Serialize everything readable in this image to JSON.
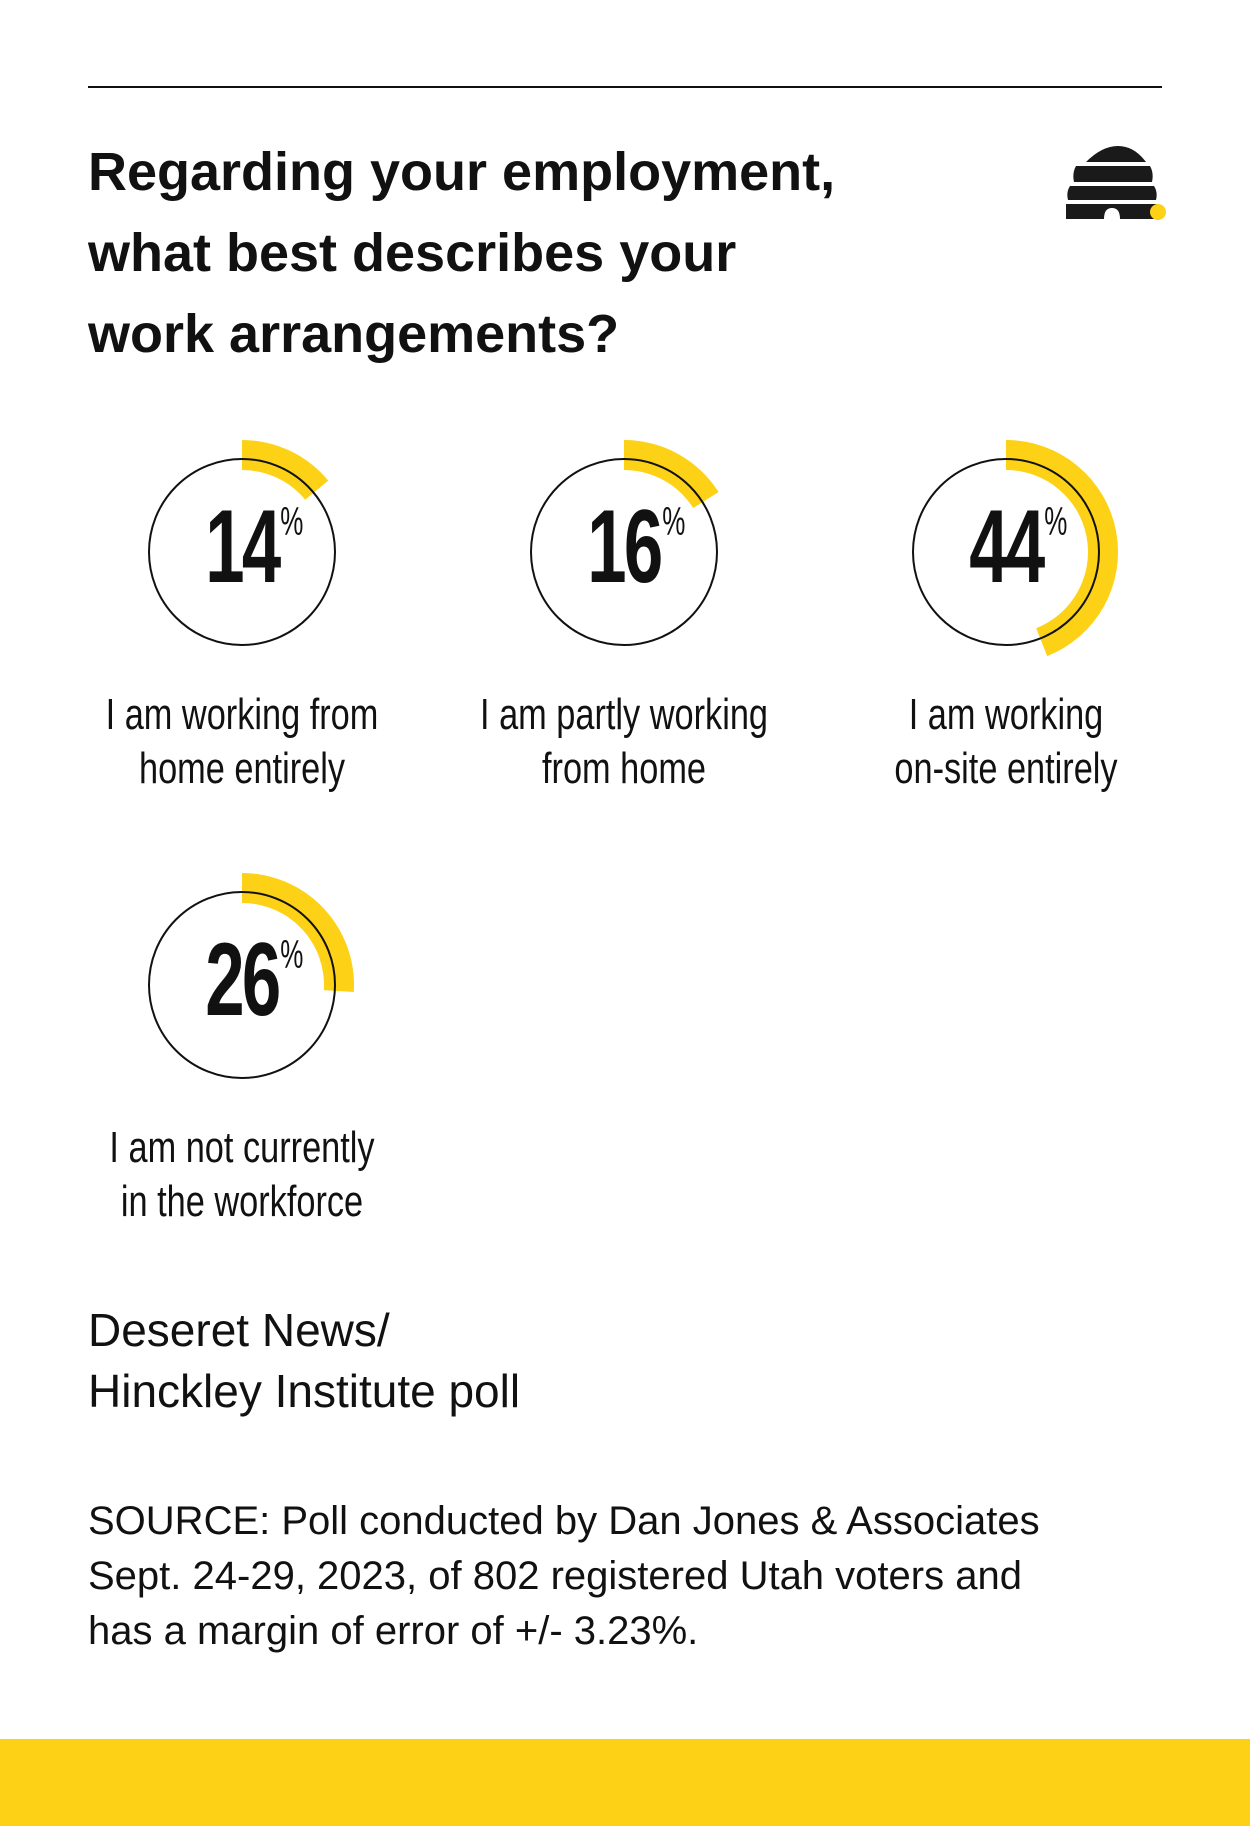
{
  "title": "Regarding your employment, what best describes your work arrangements?",
  "title_lines": [
    "Regarding your employment,",
    "what best describes your",
    "work arrangements?"
  ],
  "chart_data": {
    "type": "pie",
    "style": "donut-arc",
    "title": "Regarding your employment, what best describes your work arrangements?",
    "unit": "%",
    "categories": [
      "I am working from home entirely",
      "I am partly working from home",
      "I am working on-site entirely",
      "I am not currently in the workforce"
    ],
    "values": [
      14,
      16,
      44,
      26
    ],
    "items": [
      {
        "value": "14",
        "label_lines": [
          "I am working from",
          "home entirely"
        ]
      },
      {
        "value": "16",
        "label_lines": [
          "I am partly working",
          "from home"
        ]
      },
      {
        "value": "44",
        "label_lines": [
          "I am working",
          "on-site entirely"
        ]
      },
      {
        "value": "26",
        "label_lines": [
          "I am not currently",
          "in the workforce"
        ]
      }
    ],
    "percent_symbol": "%"
  },
  "poll_name_lines": [
    "Deseret News/",
    "Hinckley Institute poll"
  ],
  "source_lines": [
    "SOURCE: Poll conducted by Dan Jones & Associates",
    "Sept. 24-29, 2023, of 802 registered Utah voters and",
    "has a margin of error of +/- 3.23%."
  ],
  "colors": {
    "accent": "#fcd116",
    "text": "#111111",
    "background": "#ffffff"
  },
  "logo": "deseret-news-beehive-logo"
}
